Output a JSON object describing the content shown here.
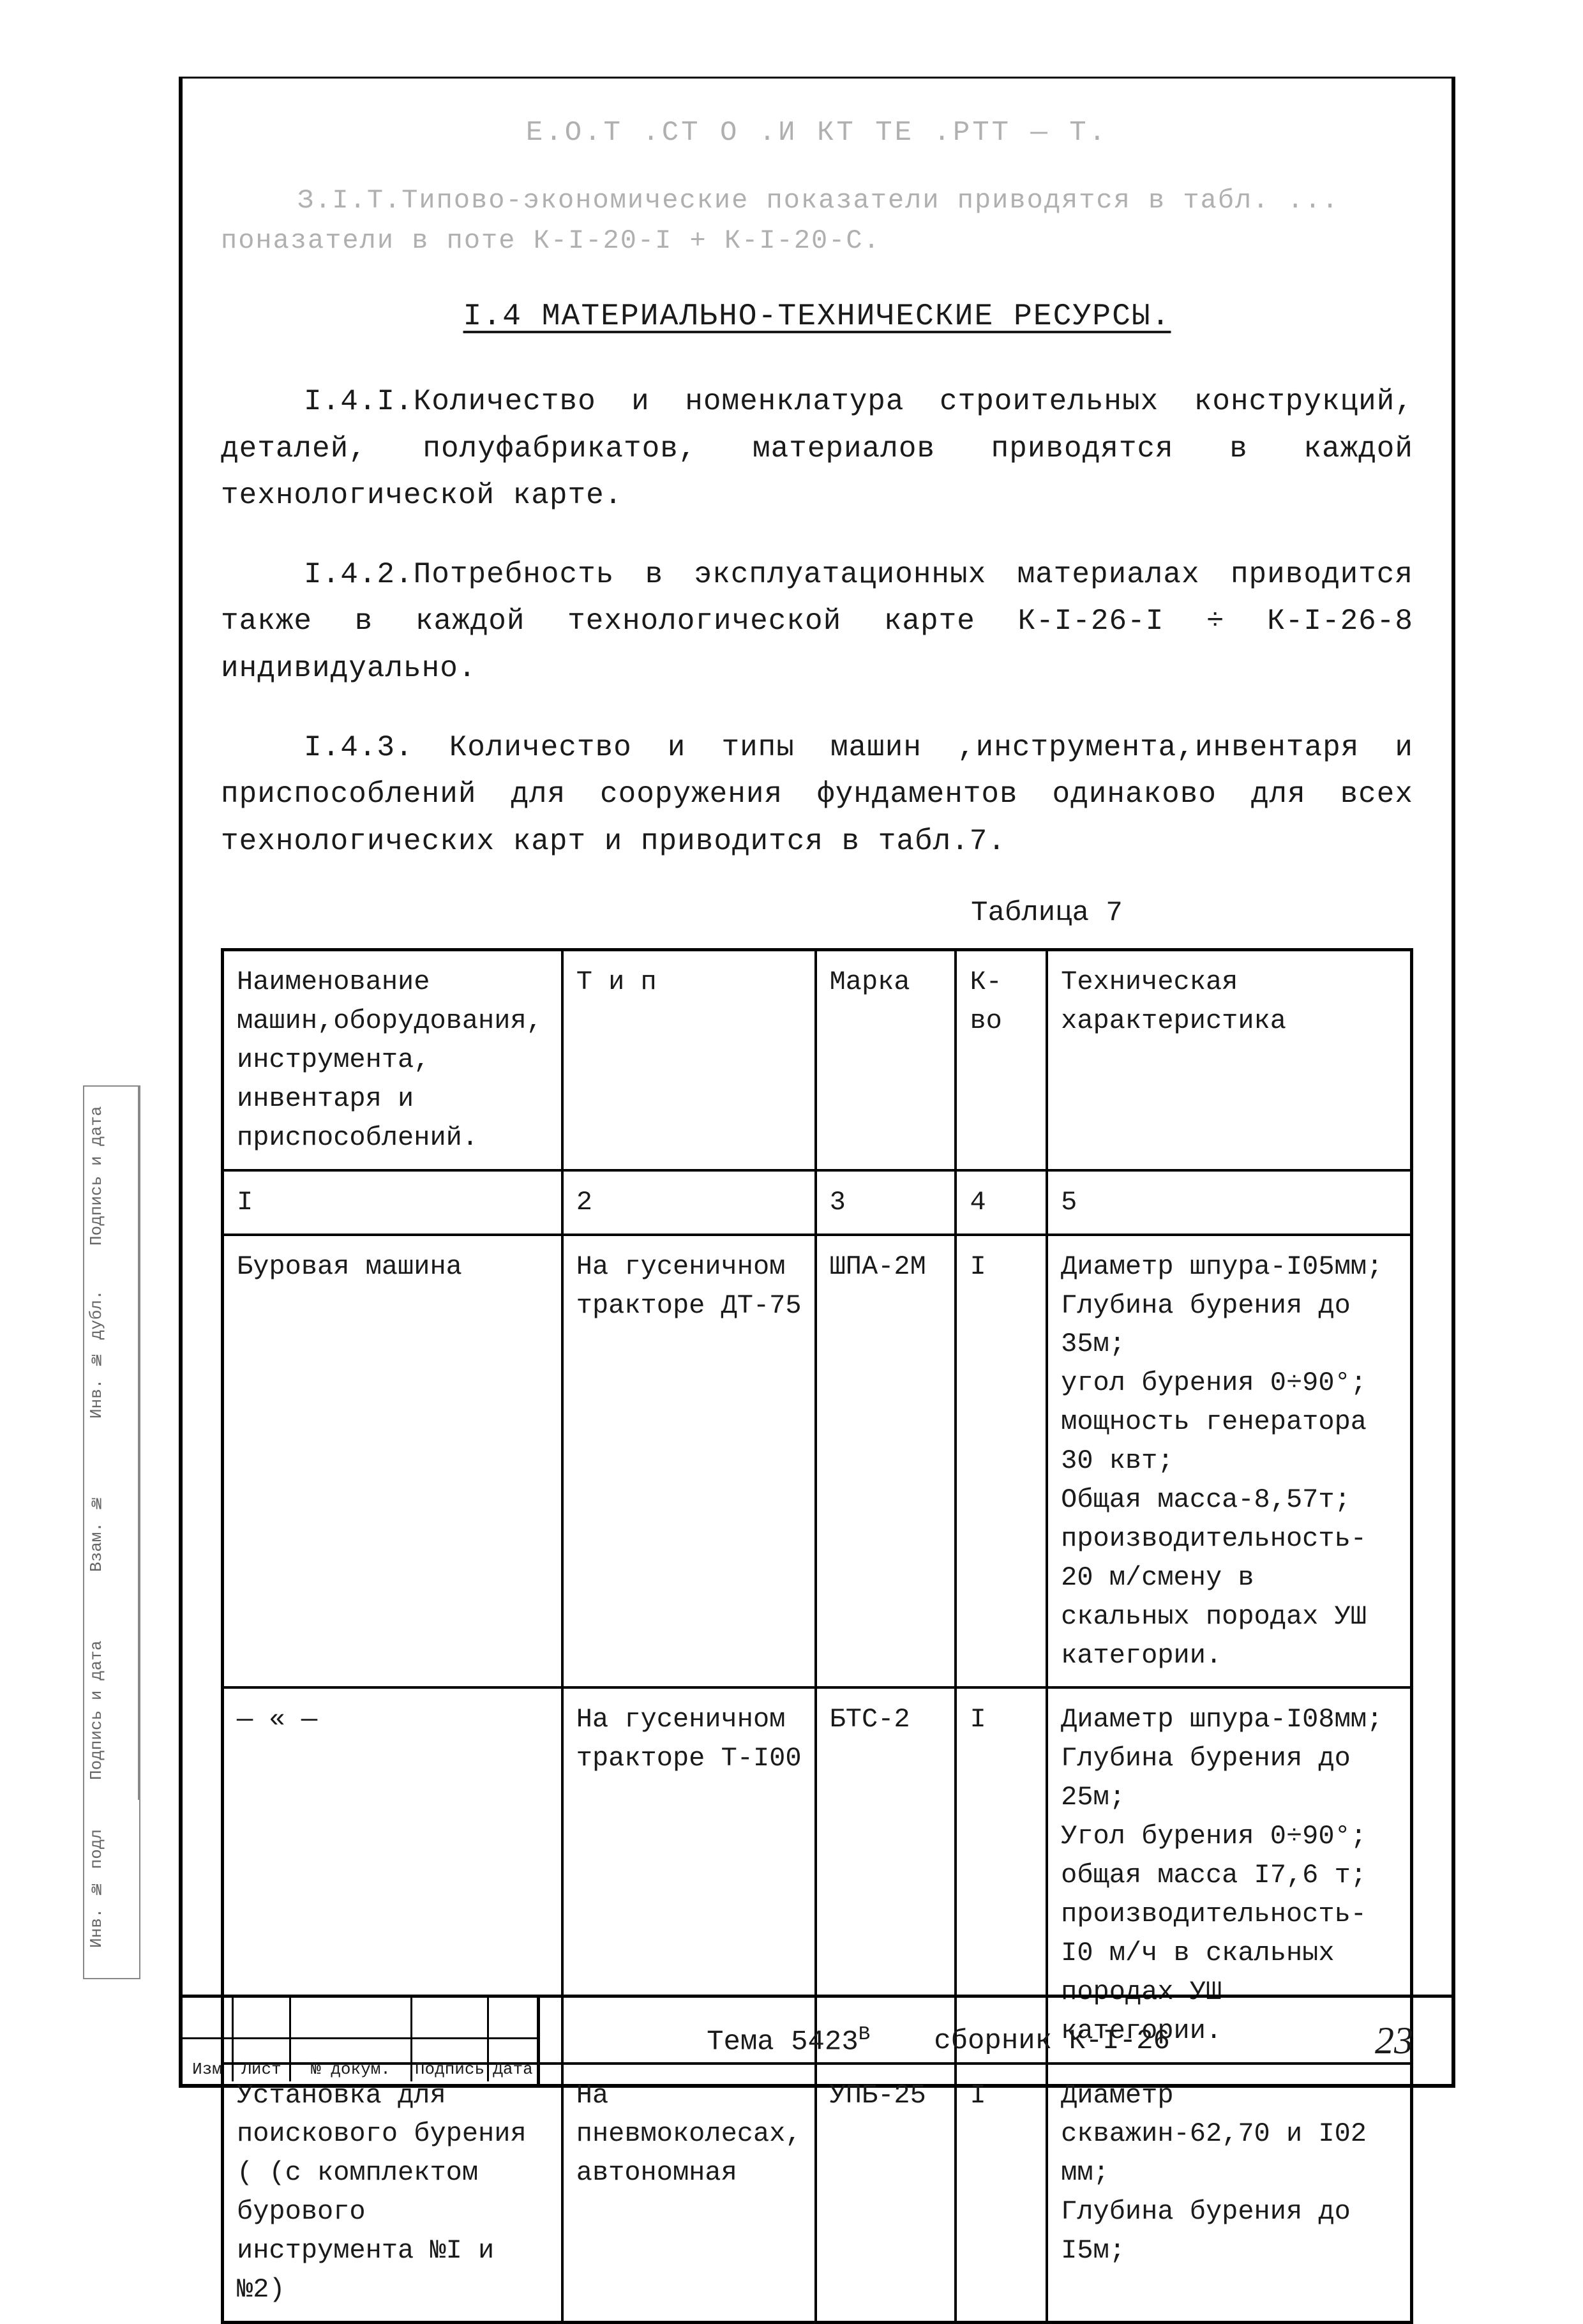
{
  "faded_header": "Е.О.Т .СТ О .И КТ ТЕ .РТТ   —   Т.",
  "faded_intro": "З.І.Т.Типово-экономические показатели приводятся в табл. ... поназатели в поте К-І-20-І + К-І-20-С.",
  "section_title": "І.4 МАТЕРИАЛЬНО-ТЕХНИЧЕСКИЕ РЕСУРСЫ.",
  "para_141": "І.4.І.Количество и номенклатура строительных конструкций, деталей, полуфабрикатов, материалов приводятся в каждой технологической карте.",
  "para_142": "І.4.2.Потребность в эксплуатационных материалах приводится также в каждой технологической карте К-І-26-І ÷ К-І-26-8 индивидуально.",
  "para_143": "І.4.3. Количество и типы машин ,инструмента,инвентаря и приспособлений для сооружения фундаментов одинаково для всех технологических карт и приводится в табл.7.",
  "table_caption": "Таблица 7",
  "table": {
    "headers": {
      "h1": "Наименование машин,оборудования, инструмента, инвентаря и приспособлений.",
      "h2": "Т и п",
      "h3": "Марка",
      "h4": "К-во",
      "h5": "Техническая характеристика"
    },
    "nums": [
      "І",
      "2",
      "3",
      "4",
      "5"
    ],
    "rows": [
      {
        "name": "Буровая машина",
        "type": "На гусеничном тракторе ДТ-75",
        "mark": "ШПА-2М",
        "qty": "І",
        "spec": "Диаметр шпура-І05мм;\nГлубина бурения до 35м;\nугол бурения 0÷90°;\nмощность генератора 30 квт;\nОбщая масса-8,57т;\nпроизводительность- 20 м/смену в скальных породах УШ категории."
      },
      {
        "name": "— « —",
        "type": "На гусеничном тракторе Т-І00",
        "mark": "БТС-2",
        "qty": "І",
        "spec": "Диаметр шпура-І08мм;\nГлубина бурения до 25м;\nУгол бурения 0÷90°;\nобщая масса І7,6 т;\nпроизводительность- І0 м/ч в скальных породах УШ категории."
      },
      {
        "name": "Установка для поискового бурения ( (с комплектом бурового инструмента №І и №2)",
        "type": "На пневмоколесах, автономная",
        "mark": "УПБ-25",
        "qty": "І",
        "spec": "Диаметр скважин-62,70 и І02 мм;\nГлубина бурения до І5м;"
      }
    ]
  },
  "footer": {
    "labels": {
      "izm": "Изм",
      "list": "Лист",
      "dokum": "№ докум.",
      "podpis": "Подпись",
      "data": "Дата"
    },
    "tema": "Тема 5423",
    "tema_sup": "В",
    "sbornik": "сборник К-І-26",
    "page": "23"
  },
  "side": {
    "s1": "Инв. № подл",
    "s2": "Подпись и дата",
    "s3": "Взам. №",
    "s4": "Инв. № дубл.",
    "s5": "Подпись и дата"
  }
}
